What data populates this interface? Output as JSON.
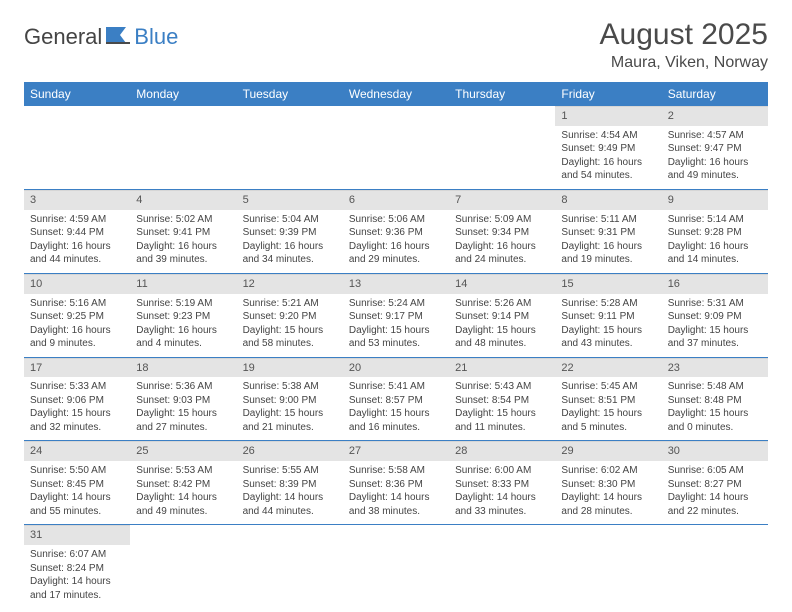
{
  "logo": {
    "text1": "General",
    "text2": "Blue"
  },
  "title": "August 2025",
  "location": "Maura, Viken, Norway",
  "header_bg": "#3b7fc4",
  "header_fg": "#ffffff",
  "daynum_bg": "#e4e4e4",
  "cell_border": "#3b7fc4",
  "weekdays": [
    "Sunday",
    "Monday",
    "Tuesday",
    "Wednesday",
    "Thursday",
    "Friday",
    "Saturday"
  ],
  "weeks": [
    [
      null,
      null,
      null,
      null,
      null,
      {
        "n": "1",
        "sr": "Sunrise: 4:54 AM",
        "ss": "Sunset: 9:49 PM",
        "dl": "Daylight: 16 hours and 54 minutes."
      },
      {
        "n": "2",
        "sr": "Sunrise: 4:57 AM",
        "ss": "Sunset: 9:47 PM",
        "dl": "Daylight: 16 hours and 49 minutes."
      }
    ],
    [
      {
        "n": "3",
        "sr": "Sunrise: 4:59 AM",
        "ss": "Sunset: 9:44 PM",
        "dl": "Daylight: 16 hours and 44 minutes."
      },
      {
        "n": "4",
        "sr": "Sunrise: 5:02 AM",
        "ss": "Sunset: 9:41 PM",
        "dl": "Daylight: 16 hours and 39 minutes."
      },
      {
        "n": "5",
        "sr": "Sunrise: 5:04 AM",
        "ss": "Sunset: 9:39 PM",
        "dl": "Daylight: 16 hours and 34 minutes."
      },
      {
        "n": "6",
        "sr": "Sunrise: 5:06 AM",
        "ss": "Sunset: 9:36 PM",
        "dl": "Daylight: 16 hours and 29 minutes."
      },
      {
        "n": "7",
        "sr": "Sunrise: 5:09 AM",
        "ss": "Sunset: 9:34 PM",
        "dl": "Daylight: 16 hours and 24 minutes."
      },
      {
        "n": "8",
        "sr": "Sunrise: 5:11 AM",
        "ss": "Sunset: 9:31 PM",
        "dl": "Daylight: 16 hours and 19 minutes."
      },
      {
        "n": "9",
        "sr": "Sunrise: 5:14 AM",
        "ss": "Sunset: 9:28 PM",
        "dl": "Daylight: 16 hours and 14 minutes."
      }
    ],
    [
      {
        "n": "10",
        "sr": "Sunrise: 5:16 AM",
        "ss": "Sunset: 9:25 PM",
        "dl": "Daylight: 16 hours and 9 minutes."
      },
      {
        "n": "11",
        "sr": "Sunrise: 5:19 AM",
        "ss": "Sunset: 9:23 PM",
        "dl": "Daylight: 16 hours and 4 minutes."
      },
      {
        "n": "12",
        "sr": "Sunrise: 5:21 AM",
        "ss": "Sunset: 9:20 PM",
        "dl": "Daylight: 15 hours and 58 minutes."
      },
      {
        "n": "13",
        "sr": "Sunrise: 5:24 AM",
        "ss": "Sunset: 9:17 PM",
        "dl": "Daylight: 15 hours and 53 minutes."
      },
      {
        "n": "14",
        "sr": "Sunrise: 5:26 AM",
        "ss": "Sunset: 9:14 PM",
        "dl": "Daylight: 15 hours and 48 minutes."
      },
      {
        "n": "15",
        "sr": "Sunrise: 5:28 AM",
        "ss": "Sunset: 9:11 PM",
        "dl": "Daylight: 15 hours and 43 minutes."
      },
      {
        "n": "16",
        "sr": "Sunrise: 5:31 AM",
        "ss": "Sunset: 9:09 PM",
        "dl": "Daylight: 15 hours and 37 minutes."
      }
    ],
    [
      {
        "n": "17",
        "sr": "Sunrise: 5:33 AM",
        "ss": "Sunset: 9:06 PM",
        "dl": "Daylight: 15 hours and 32 minutes."
      },
      {
        "n": "18",
        "sr": "Sunrise: 5:36 AM",
        "ss": "Sunset: 9:03 PM",
        "dl": "Daylight: 15 hours and 27 minutes."
      },
      {
        "n": "19",
        "sr": "Sunrise: 5:38 AM",
        "ss": "Sunset: 9:00 PM",
        "dl": "Daylight: 15 hours and 21 minutes."
      },
      {
        "n": "20",
        "sr": "Sunrise: 5:41 AM",
        "ss": "Sunset: 8:57 PM",
        "dl": "Daylight: 15 hours and 16 minutes."
      },
      {
        "n": "21",
        "sr": "Sunrise: 5:43 AM",
        "ss": "Sunset: 8:54 PM",
        "dl": "Daylight: 15 hours and 11 minutes."
      },
      {
        "n": "22",
        "sr": "Sunrise: 5:45 AM",
        "ss": "Sunset: 8:51 PM",
        "dl": "Daylight: 15 hours and 5 minutes."
      },
      {
        "n": "23",
        "sr": "Sunrise: 5:48 AM",
        "ss": "Sunset: 8:48 PM",
        "dl": "Daylight: 15 hours and 0 minutes."
      }
    ],
    [
      {
        "n": "24",
        "sr": "Sunrise: 5:50 AM",
        "ss": "Sunset: 8:45 PM",
        "dl": "Daylight: 14 hours and 55 minutes."
      },
      {
        "n": "25",
        "sr": "Sunrise: 5:53 AM",
        "ss": "Sunset: 8:42 PM",
        "dl": "Daylight: 14 hours and 49 minutes."
      },
      {
        "n": "26",
        "sr": "Sunrise: 5:55 AM",
        "ss": "Sunset: 8:39 PM",
        "dl": "Daylight: 14 hours and 44 minutes."
      },
      {
        "n": "27",
        "sr": "Sunrise: 5:58 AM",
        "ss": "Sunset: 8:36 PM",
        "dl": "Daylight: 14 hours and 38 minutes."
      },
      {
        "n": "28",
        "sr": "Sunrise: 6:00 AM",
        "ss": "Sunset: 8:33 PM",
        "dl": "Daylight: 14 hours and 33 minutes."
      },
      {
        "n": "29",
        "sr": "Sunrise: 6:02 AM",
        "ss": "Sunset: 8:30 PM",
        "dl": "Daylight: 14 hours and 28 minutes."
      },
      {
        "n": "30",
        "sr": "Sunrise: 6:05 AM",
        "ss": "Sunset: 8:27 PM",
        "dl": "Daylight: 14 hours and 22 minutes."
      }
    ],
    [
      {
        "n": "31",
        "sr": "Sunrise: 6:07 AM",
        "ss": "Sunset: 8:24 PM",
        "dl": "Daylight: 14 hours and 17 minutes."
      },
      null,
      null,
      null,
      null,
      null,
      null
    ]
  ]
}
